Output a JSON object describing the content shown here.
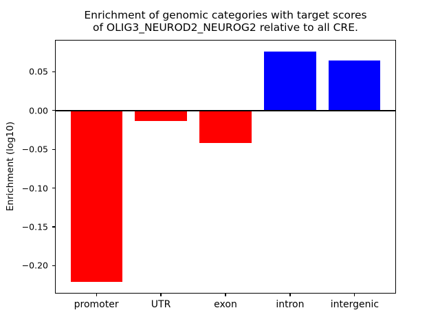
{
  "chart_data": {
    "type": "bar",
    "title_lines": [
      "Enrichment of genomic categories with target scores",
      "of OLIG3_NEUROD2_NEUROG2 relative to all CRE."
    ],
    "xlabel": "",
    "ylabel": "Enrichment (log10)",
    "categories": [
      "promoter",
      "UTR",
      "exon",
      "intron",
      "intergenic"
    ],
    "values": [
      -0.221,
      -0.013,
      -0.042,
      0.076,
      0.065
    ],
    "bar_colors": [
      "#ff0000",
      "#ff0000",
      "#ff0000",
      "#0000ff",
      "#0000ff"
    ],
    "negative_color": "#ff0000",
    "positive_color": "#0000ff",
    "ylim": [
      -0.236,
      0.0912
    ],
    "yticks": [
      {
        "value": 0.05,
        "label": "0.05"
      },
      {
        "value": 0.0,
        "label": "0.00"
      },
      {
        "value": -0.05,
        "label": "−0.05"
      },
      {
        "value": -0.1,
        "label": "−0.10"
      },
      {
        "value": -0.15,
        "label": "−0.15"
      },
      {
        "value": -0.2,
        "label": "−0.20"
      }
    ],
    "bar_width_fraction": 0.8,
    "grid": false,
    "legend": null,
    "zero_line_color": "#000000",
    "background_color": "#ffffff",
    "text_color": "#000000"
  }
}
